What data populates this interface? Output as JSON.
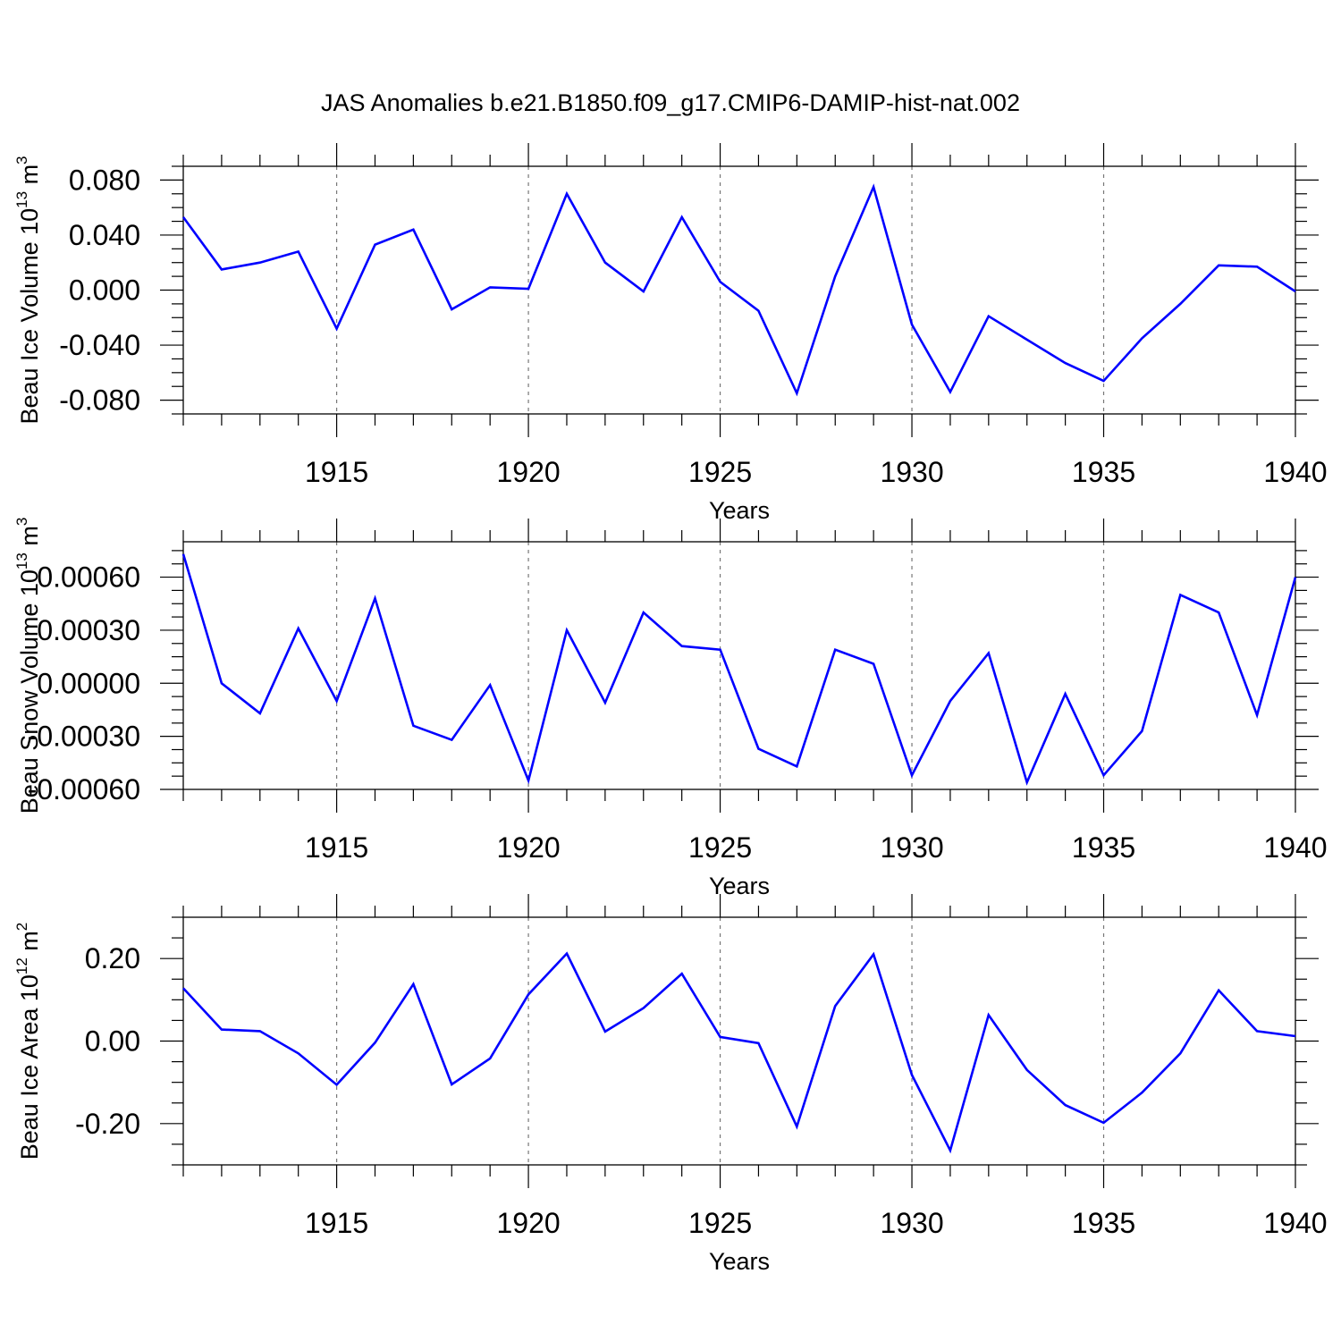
{
  "title": "JAS Anomalies b.e21.B1850.f09_g17.CMIP6-DAMIP-hist-nat.002",
  "line_color": "#0000ff",
  "chart_data": [
    {
      "type": "line",
      "ylabel": "Beau Ice Volume 10",
      "ylabel_sup": "13",
      "ylabel_unit": " m",
      "ylabel_unit_sup": "3",
      "xlabel": "Years",
      "xlim": [
        1911,
        1940
      ],
      "ylim": [
        -0.09,
        0.09
      ],
      "yticks": [
        -0.08,
        -0.04,
        0.0,
        0.04,
        0.08
      ],
      "ytick_labels": [
        "-0.080",
        "-0.040",
        "0.000",
        "0.040",
        "0.080"
      ],
      "xticks": [
        1915,
        1920,
        1925,
        1930,
        1935,
        1940
      ],
      "xtick_labels": [
        "1915",
        "1920",
        "1925",
        "1930",
        "1935",
        "1940"
      ],
      "x": [
        1911,
        1912,
        1913,
        1914,
        1915,
        1916,
        1917,
        1918,
        1919,
        1920,
        1921,
        1922,
        1923,
        1924,
        1925,
        1926,
        1927,
        1928,
        1929,
        1930,
        1931,
        1932,
        1933,
        1934,
        1935,
        1936,
        1937,
        1938,
        1939,
        1940
      ],
      "values": [
        0.053,
        0.015,
        0.02,
        0.028,
        -0.028,
        0.033,
        0.044,
        -0.014,
        0.002,
        0.001,
        0.07,
        0.02,
        -0.001,
        0.053,
        0.006,
        -0.015,
        -0.075,
        0.01,
        0.075,
        -0.025,
        -0.074,
        -0.019,
        -0.036,
        -0.053,
        -0.066,
        -0.035,
        -0.01,
        0.018,
        0.017,
        -0.001
      ]
    },
    {
      "type": "line",
      "ylabel": "Beau Snow Volume 10",
      "ylabel_sup": "13",
      "ylabel_unit": " m",
      "ylabel_unit_sup": "3",
      "xlabel": "Years",
      "xlim": [
        1911,
        1940
      ],
      "ylim": [
        -0.0006,
        0.0008
      ],
      "yticks": [
        -0.0006,
        -0.0003,
        0.0,
        0.0003,
        0.0006
      ],
      "ytick_labels": [
        "-0.00060",
        "-0.00030",
        "0.00000",
        "0.00030",
        "0.00060"
      ],
      "xticks": [
        1915,
        1920,
        1925,
        1930,
        1935,
        1940
      ],
      "xtick_labels": [
        "1915",
        "1920",
        "1925",
        "1930",
        "1935",
        "1940"
      ],
      "x": [
        1911,
        1912,
        1913,
        1914,
        1915,
        1916,
        1917,
        1918,
        1919,
        1920,
        1921,
        1922,
        1923,
        1924,
        1925,
        1926,
        1927,
        1928,
        1929,
        1930,
        1931,
        1932,
        1933,
        1934,
        1935,
        1936,
        1937,
        1938,
        1939,
        1940
      ],
      "values": [
        0.00073,
        0.0,
        -0.00017,
        0.00031,
        -0.0001,
        0.00048,
        -0.00024,
        -0.00032,
        -1e-05,
        -0.00055,
        0.0003,
        -0.00011,
        0.0004,
        0.00021,
        0.00019,
        -0.00037,
        -0.00047,
        0.00019,
        0.00011,
        -0.00052,
        -0.0001,
        0.00017,
        -0.00056,
        -6e-05,
        -0.00052,
        -0.00027,
        0.0005,
        0.0004,
        -0.00018,
        0.0006
      ]
    },
    {
      "type": "line",
      "ylabel": "Beau Ice Area 10",
      "ylabel_sup": "12",
      "ylabel_unit": " m",
      "ylabel_unit_sup": "2",
      "xlabel": "Years",
      "xlim": [
        1911,
        1940
      ],
      "ylim": [
        -0.3,
        0.3
      ],
      "yticks": [
        -0.2,
        0.0,
        0.2
      ],
      "ytick_labels": [
        "-0.20",
        "0.00",
        "0.20"
      ],
      "xticks": [
        1915,
        1920,
        1925,
        1930,
        1935,
        1940
      ],
      "xtick_labels": [
        "1915",
        "1920",
        "1925",
        "1930",
        "1935",
        "1940"
      ],
      "x": [
        1911,
        1912,
        1913,
        1914,
        1915,
        1916,
        1917,
        1918,
        1919,
        1920,
        1921,
        1922,
        1923,
        1924,
        1925,
        1926,
        1927,
        1928,
        1929,
        1930,
        1931,
        1932,
        1933,
        1934,
        1935,
        1936,
        1937,
        1938,
        1939,
        1940
      ],
      "values": [
        0.128,
        0.028,
        0.024,
        -0.03,
        -0.106,
        -0.004,
        0.138,
        -0.105,
        -0.042,
        0.113,
        0.212,
        0.023,
        0.08,
        0.163,
        0.01,
        -0.005,
        -0.207,
        0.085,
        0.21,
        -0.082,
        -0.265,
        0.063,
        -0.07,
        -0.155,
        -0.198,
        -0.125,
        -0.03,
        0.123,
        0.024,
        0.012
      ]
    }
  ]
}
